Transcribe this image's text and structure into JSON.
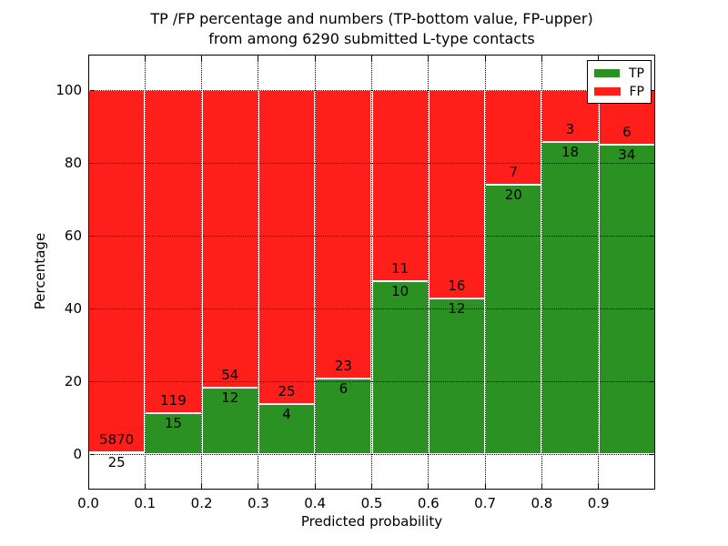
{
  "figure": {
    "title_line1": "TP /FP percentage and numbers (TP-bottom value, FP-upper)",
    "title_line2": "from among 6290 submitted L-type contacts"
  },
  "chart_data": {
    "type": "bar",
    "stacked": true,
    "normalized_to_percent": true,
    "title": "TP /FP percentage and numbers (TP-bottom value, FP-upper)\nfrom among 6290 submitted L-type contacts",
    "xlabel": "Predicted probability",
    "ylabel": "Percentage",
    "total_contacts": 6290,
    "x_bins": {
      "start": 0.0,
      "width": 0.1,
      "count": 10
    },
    "categories": [
      "0.0-0.1",
      "0.1-0.2",
      "0.2-0.3",
      "0.3-0.4",
      "0.4-0.5",
      "0.5-0.6",
      "0.6-0.7",
      "0.7-0.8",
      "0.8-0.9",
      "0.9-1.0"
    ],
    "series": [
      {
        "name": "TP",
        "color": "#2a9122",
        "counts": [
          25,
          15,
          12,
          4,
          6,
          10,
          12,
          20,
          18,
          34
        ]
      },
      {
        "name": "FP",
        "color": "#ff1f1a",
        "counts": [
          5870,
          119,
          54,
          25,
          23,
          11,
          16,
          7,
          3,
          6
        ]
      }
    ],
    "bar_label_rule": "FP count printed just above TP/FP boundary, TP count just below it",
    "x_ticks": [
      "0.0",
      "0.1",
      "0.2",
      "0.3",
      "0.4",
      "0.5",
      "0.6",
      "0.7",
      "0.8",
      "0.9"
    ],
    "y_ticks": [
      0,
      20,
      40,
      60,
      80,
      100
    ],
    "xlim": [
      0.0,
      1.0
    ],
    "ylim": [
      -10,
      110
    ],
    "grid": "dotted",
    "bar_edge_color": "#ffffff",
    "legend": {
      "position": "upper right",
      "entries": [
        {
          "label": "TP",
          "color": "#2a9122"
        },
        {
          "label": "FP",
          "color": "#ff1f1a"
        }
      ]
    }
  }
}
